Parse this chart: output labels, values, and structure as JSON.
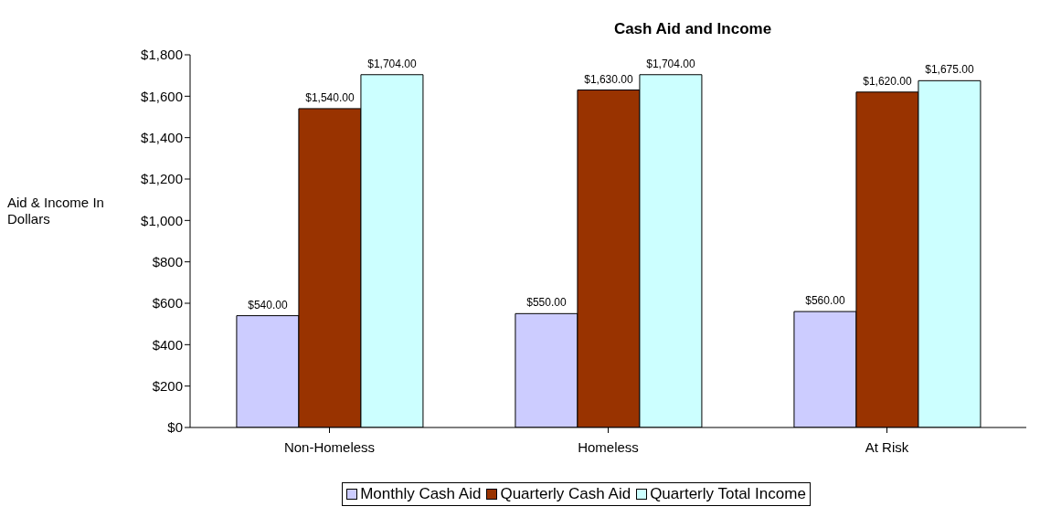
{
  "chart_data": {
    "type": "bar",
    "title": "Cash Aid and Income",
    "ylabel": "Aid & Income In Dollars",
    "categories": [
      "Non-Homeless",
      "Homeless",
      "At Risk"
    ],
    "series": [
      {
        "name": "Monthly Cash Aid",
        "color": "#ccccff",
        "values": [
          540,
          550,
          560
        ],
        "value_labels": [
          "$540.00",
          "$550.00",
          "$560.00"
        ]
      },
      {
        "name": "Quarterly Cash Aid",
        "color": "#993300",
        "values": [
          1540,
          1630,
          1620
        ],
        "value_labels": [
          "$1,540.00",
          "$1,630.00",
          "$1,620.00"
        ]
      },
      {
        "name": "Quarterly Total Income",
        "color": "#ccffff",
        "values": [
          1704,
          1704,
          1675
        ],
        "value_labels": [
          "$1,704.00",
          "$1,704.00",
          "$1,675.00"
        ]
      }
    ],
    "ylim": [
      0,
      1800
    ],
    "yticks": [
      {
        "value": 0,
        "label": "$0"
      },
      {
        "value": 200,
        "label": "$200"
      },
      {
        "value": 400,
        "label": "$400"
      },
      {
        "value": 600,
        "label": "$600"
      },
      {
        "value": 800,
        "label": "$800"
      },
      {
        "value": 1000,
        "label": "$1,000"
      },
      {
        "value": 1200,
        "label": "$1,200"
      },
      {
        "value": 1400,
        "label": "$1,400"
      },
      {
        "value": 1600,
        "label": "$1,600"
      },
      {
        "value": 1800,
        "label": "$1,800"
      }
    ],
    "grid": false,
    "legend": "bottom"
  }
}
